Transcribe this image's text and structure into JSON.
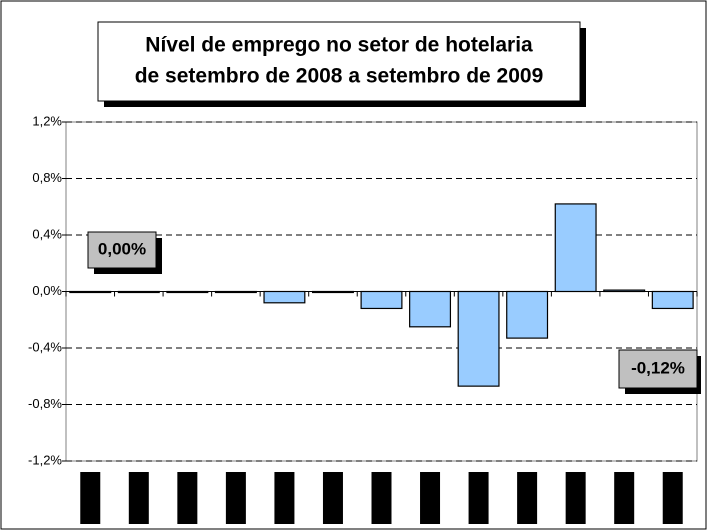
{
  "chart_data": {
    "type": "bar",
    "title_lines": [
      "Nível de emprego no setor de hotelaria",
      "de setembro de 2008 a setembro de 2009"
    ],
    "categories": [
      null,
      null,
      null,
      null,
      null,
      null,
      null,
      null,
      null,
      null,
      null,
      null,
      null
    ],
    "values": [
      0,
      0,
      0,
      0,
      -0.08,
      0,
      -0.12,
      -0.25,
      -0.67,
      -0.33,
      0.62,
      0.01,
      -0.12
    ],
    "color": "#99ccff",
    "ylim": [
      -1.2,
      1.2
    ],
    "yticks": [
      {
        "value": 1.2,
        "label": "1,2%"
      },
      {
        "value": 0.8,
        "label": "0,8%"
      },
      {
        "value": 0.4,
        "label": "0,4%"
      },
      {
        "value": 0,
        "label": "0,0%"
      },
      {
        "value": -0.4,
        "label": "-0,4%"
      },
      {
        "value": -0.8,
        "label": "-0,8%"
      },
      {
        "value": -1.2,
        "label": "-1,2%"
      }
    ],
    "grid": true,
    "annotations": [
      "0,00%",
      "-0,12%"
    ]
  }
}
